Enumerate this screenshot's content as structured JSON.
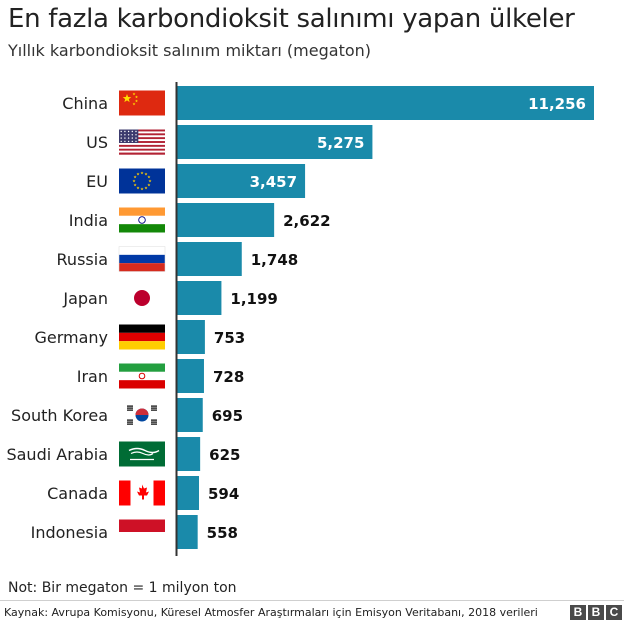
{
  "title": "En fazla karbondioksit salınımı yapan ülkeler",
  "subtitle": "Yıllık karbondioksit salınım miktarı (megaton)",
  "note": "Not: Bir megaton = 1 milyon ton",
  "source": "Kaynak: Avrupa Komisyonu, Küresel Atmosfer Araştırmaları için Emisyon Veritabanı, 2018 verileri",
  "logo": [
    "B",
    "B",
    "C"
  ],
  "colors": {
    "bar": "#1a8aaa",
    "label_inside": "#ffffff",
    "label_outside": "#111111"
  },
  "chart_data": {
    "type": "bar",
    "orientation": "horizontal",
    "title": "En fazla karbondioksit salınımı yapan ülkeler",
    "subtitle": "Yıllık karbondioksit salınım miktarı (megaton)",
    "categories": [
      "China",
      "US",
      "EU",
      "India",
      "Russia",
      "Japan",
      "Germany",
      "Iran",
      "South Korea",
      "Saudi Arabia",
      "Canada",
      "Indonesia"
    ],
    "values": [
      11256,
      5275,
      3457,
      2622,
      1748,
      1199,
      753,
      728,
      695,
      625,
      594,
      558
    ],
    "value_labels": [
      "11,256",
      "5,275",
      "3,457",
      "2,622",
      "1,748",
      "1,199",
      "753",
      "728",
      "695",
      "625",
      "594",
      "558"
    ],
    "flags": [
      "china-flag-icon",
      "us-flag-icon",
      "eu-flag-icon",
      "india-flag-icon",
      "russia-flag-icon",
      "japan-flag-icon",
      "germany-flag-icon",
      "iran-flag-icon",
      "south-korea-flag-icon",
      "saudi-arabia-flag-icon",
      "canada-flag-icon",
      "indonesia-flag-icon"
    ],
    "xlim": [
      0,
      11256
    ],
    "grid": false,
    "legend": "none"
  }
}
